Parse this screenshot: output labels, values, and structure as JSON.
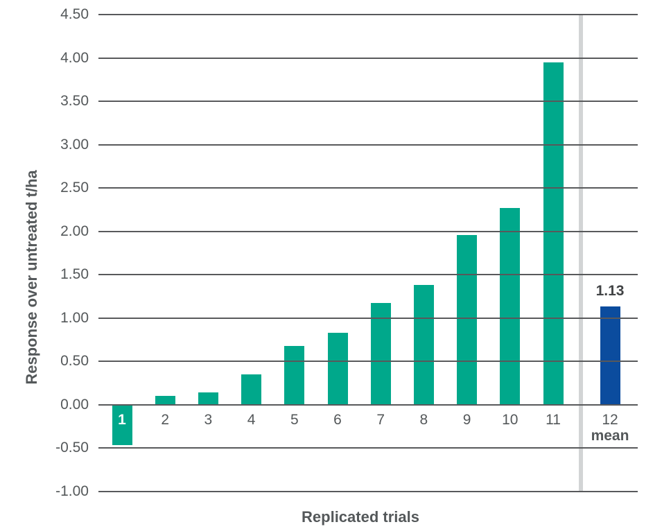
{
  "chart_data": {
    "type": "bar",
    "title": "",
    "xlabel": "Replicated trials",
    "ylabel": "Response over untreated t/ha",
    "categories": [
      "1",
      "2",
      "3",
      "4",
      "5",
      "6",
      "7",
      "8",
      "9",
      "10",
      "11",
      "12"
    ],
    "values": [
      -0.47,
      0.1,
      0.14,
      0.35,
      0.68,
      0.83,
      1.17,
      1.38,
      1.96,
      2.27,
      3.95,
      1.13
    ],
    "series": [
      {
        "name": "Replicated trials",
        "values": [
          -0.47,
          0.1,
          0.14,
          0.35,
          0.68,
          0.83,
          1.17,
          1.38,
          1.96,
          2.27,
          3.95
        ]
      },
      {
        "name": "mean",
        "values": [
          1.13
        ]
      }
    ],
    "mean_bar": {
      "category": "12",
      "label_line2": "mean",
      "value_label": "1.13"
    },
    "ylim": [
      -1.0,
      4.5
    ],
    "ytick_step": 0.5,
    "yticks": [
      "4.50",
      "4.00",
      "3.50",
      "3.00",
      "2.50",
      "2.00",
      "1.50",
      "1.00",
      "0.50",
      "0.00",
      "-0.50",
      "-1.00"
    ],
    "grid": true,
    "legend": false,
    "colors": {
      "trial_bar": "#00a88b",
      "mean_bar": "#0b4c9e",
      "gridline": "#58595b",
      "tick_text": "#54585a",
      "axis_title_text": "#54585a",
      "separator_line": "#d2d4d5",
      "value_label_text": "#414345",
      "first_bar_label": "#ffffff"
    }
  }
}
